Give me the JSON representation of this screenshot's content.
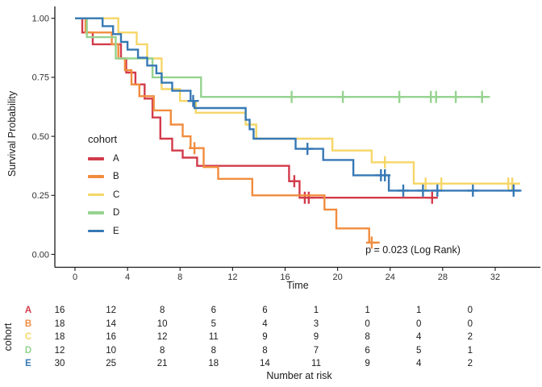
{
  "figure": {
    "y_axis": {
      "label": "Survival Probability",
      "tick_labels": [
        "1.00",
        "0.75",
        "0.50",
        "0.25",
        "0.00"
      ],
      "tick_values": [
        1.0,
        0.75,
        0.5,
        0.25,
        0.0
      ]
    },
    "x_axis": {
      "label": "Time",
      "tick_values": [
        0,
        4,
        8,
        12,
        16,
        20,
        24,
        28,
        32
      ]
    },
    "legend": {
      "title": "cohort",
      "items": [
        {
          "label": "A",
          "color": "#d23b4b"
        },
        {
          "label": "B",
          "color": "#f18c3e"
        },
        {
          "label": "C",
          "color": "#f6d667"
        },
        {
          "label": "D",
          "color": "#96d390"
        },
        {
          "label": "E",
          "color": "#3678b5"
        }
      ]
    },
    "annotation": {
      "p_value": "p = 0.023 (Log Rank)"
    }
  },
  "chart_data": {
    "type": "line",
    "subtype": "kaplan-meier-step",
    "title": "",
    "xlabel": "Time",
    "ylabel": "Survival Probability",
    "xlim": [
      -1.5,
      35.5
    ],
    "ylim": [
      0,
      1.0
    ],
    "x_ticks": [
      0,
      4,
      8,
      12,
      16,
      20,
      24,
      28,
      32
    ],
    "y_ticks": [
      0,
      0.25,
      0.5,
      0.75,
      1.0
    ],
    "grid": false,
    "legend_position": "left-inside",
    "annotation": "p = 0.023 (Log Rank)",
    "series": [
      {
        "name": "A",
        "color": "#d23b4b",
        "steps": [
          [
            0,
            1.0
          ],
          [
            0.55,
            0.94
          ],
          [
            1.35,
            0.89
          ],
          [
            3.5,
            0.83
          ],
          [
            3.9,
            0.77
          ],
          [
            4.6,
            0.72
          ],
          [
            5.3,
            0.66
          ],
          [
            5.9,
            0.58
          ],
          [
            6.5,
            0.49
          ],
          [
            7.4,
            0.44
          ],
          [
            8.2,
            0.41
          ],
          [
            9.3,
            0.375
          ],
          [
            16.3,
            0.31
          ],
          [
            17.1,
            0.24
          ]
        ],
        "end_time": 27.6,
        "censor_marks": [
          [
            16.7,
            0.31
          ],
          [
            17.5,
            0.24
          ],
          [
            17.8,
            0.24
          ],
          [
            27.2,
            0.24
          ]
        ]
      },
      {
        "name": "B",
        "color": "#f18c3e",
        "steps": [
          [
            0,
            1.0
          ],
          [
            0.8,
            0.94
          ],
          [
            2.8,
            0.89
          ],
          [
            3.3,
            0.83
          ],
          [
            3.8,
            0.78
          ],
          [
            4.3,
            0.72
          ],
          [
            4.9,
            0.67
          ],
          [
            6.0,
            0.61
          ],
          [
            7.3,
            0.55
          ],
          [
            8.2,
            0.5
          ],
          [
            8.8,
            0.45
          ],
          [
            9.8,
            0.37
          ],
          [
            10.9,
            0.32
          ],
          [
            13.5,
            0.25
          ],
          [
            19.0,
            0.19
          ],
          [
            19.9,
            0.11
          ],
          [
            22.4,
            0.05
          ]
        ],
        "end_time": 23.2,
        "censor_marks": [
          [
            9.1,
            0.45
          ],
          [
            22.6,
            0.05
          ]
        ]
      },
      {
        "name": "C",
        "color": "#f6d667",
        "steps": [
          [
            0,
            1.0
          ],
          [
            3.3,
            0.94
          ],
          [
            4.7,
            0.89
          ],
          [
            5.5,
            0.83
          ],
          [
            6.6,
            0.7
          ],
          [
            8.0,
            0.65
          ],
          [
            9.2,
            0.6
          ],
          [
            13.0,
            0.55
          ],
          [
            13.8,
            0.49
          ],
          [
            19.6,
            0.44
          ],
          [
            22.6,
            0.39
          ],
          [
            25.8,
            0.3
          ]
        ],
        "end_time": 33.9,
        "censor_marks": [
          [
            23.6,
            0.39
          ],
          [
            26.7,
            0.3
          ],
          [
            27.9,
            0.3
          ],
          [
            33.0,
            0.3
          ],
          [
            33.3,
            0.3
          ]
        ]
      },
      {
        "name": "D",
        "color": "#96d390",
        "steps": [
          [
            0,
            1.0
          ],
          [
            0.9,
            0.92
          ],
          [
            3.1,
            0.83
          ],
          [
            5.9,
            0.75
          ],
          [
            9.6,
            0.667
          ]
        ],
        "end_time": 31.6,
        "censor_marks": [
          [
            16.5,
            0.667
          ],
          [
            20.4,
            0.667
          ],
          [
            24.7,
            0.667
          ],
          [
            27.1,
            0.667
          ],
          [
            27.5,
            0.667
          ],
          [
            29.0,
            0.667
          ],
          [
            31.0,
            0.667
          ]
        ]
      },
      {
        "name": "E",
        "color": "#3678b5",
        "steps": [
          [
            0,
            1.0
          ],
          [
            2.1,
            0.967
          ],
          [
            2.9,
            0.933
          ],
          [
            3.5,
            0.9
          ],
          [
            4.0,
            0.867
          ],
          [
            4.8,
            0.833
          ],
          [
            5.5,
            0.8
          ],
          [
            6.2,
            0.767
          ],
          [
            6.6,
            0.727
          ],
          [
            7.4,
            0.693
          ],
          [
            8.8,
            0.65
          ],
          [
            9.1,
            0.62
          ],
          [
            13.0,
            0.57
          ],
          [
            13.3,
            0.53
          ],
          [
            13.6,
            0.49
          ],
          [
            16.8,
            0.447
          ],
          [
            18.9,
            0.4
          ],
          [
            21.2,
            0.335
          ],
          [
            23.9,
            0.27
          ]
        ],
        "end_time": 34.0,
        "censor_marks": [
          [
            9.0,
            0.65
          ],
          [
            17.7,
            0.447
          ],
          [
            23.3,
            0.335
          ],
          [
            23.6,
            0.335
          ],
          [
            25.0,
            0.27
          ],
          [
            26.5,
            0.27
          ],
          [
            27.6,
            0.27
          ],
          [
            30.3,
            0.27
          ],
          [
            33.4,
            0.27
          ]
        ]
      }
    ]
  },
  "risk_table": {
    "row_axis_label": "cohort",
    "caption": "Number at risk",
    "time_columns": [
      0,
      4,
      8,
      12,
      16,
      20,
      24,
      28,
      32
    ],
    "rows": [
      {
        "label": "A",
        "color": "#d23b4b",
        "counts": [
          16,
          12,
          8,
          6,
          6,
          1,
          1,
          1,
          0
        ]
      },
      {
        "label": "B",
        "color": "#f18c3e",
        "counts": [
          18,
          14,
          10,
          5,
          4,
          3,
          0,
          0,
          0
        ]
      },
      {
        "label": "C",
        "color": "#f6d667",
        "counts": [
          18,
          16,
          12,
          11,
          9,
          9,
          8,
          4,
          2
        ]
      },
      {
        "label": "D",
        "color": "#96d390",
        "counts": [
          12,
          10,
          8,
          8,
          8,
          7,
          6,
          5,
          1
        ]
      },
      {
        "label": "E",
        "color": "#3678b5",
        "counts": [
          30,
          25,
          21,
          18,
          14,
          11,
          9,
          4,
          2
        ]
      }
    ]
  }
}
